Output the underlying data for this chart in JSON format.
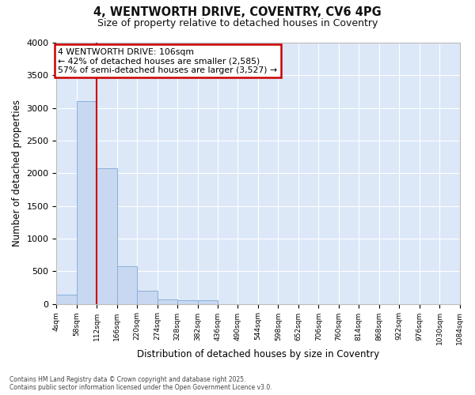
{
  "title_line1": "4, WENTWORTH DRIVE, COVENTRY, CV6 4PG",
  "title_line2": "Size of property relative to detached houses in Coventry",
  "xlabel": "Distribution of detached houses by size in Coventry",
  "ylabel": "Number of detached properties",
  "bar_color": "#c8d8f0",
  "bar_edge_color": "#8ab0d8",
  "plot_bg_color": "#dce8f8",
  "grid_color": "#ffffff",
  "fig_bg_color": "#ffffff",
  "bin_edges": [
    4,
    58,
    112,
    166,
    220,
    274,
    328,
    382,
    436,
    490,
    544,
    598,
    652,
    706,
    760,
    814,
    868,
    922,
    976,
    1030,
    1084
  ],
  "bar_heights": [
    140,
    3100,
    2080,
    575,
    195,
    70,
    55,
    55,
    0,
    0,
    0,
    0,
    0,
    0,
    0,
    0,
    0,
    0,
    0,
    0
  ],
  "red_line_x": 112,
  "red_line_color": "#cc0000",
  "annotation_text_line1": "4 WENTWORTH DRIVE: 106sqm",
  "annotation_text_line2": "← 42% of detached houses are smaller (2,585)",
  "annotation_text_line3": "57% of semi-detached houses are larger (3,527) →",
  "annotation_box_edge_color": "#cc0000",
  "ylim": [
    0,
    4000
  ],
  "yticks": [
    0,
    500,
    1000,
    1500,
    2000,
    2500,
    3000,
    3500,
    4000
  ],
  "tick_labels": [
    "4sqm",
    "58sqm",
    "112sqm",
    "166sqm",
    "220sqm",
    "274sqm",
    "328sqm",
    "382sqm",
    "436sqm",
    "490sqm",
    "544sqm",
    "598sqm",
    "652sqm",
    "706sqm",
    "760sqm",
    "814sqm",
    "868sqm",
    "922sqm",
    "976sqm",
    "1030sqm",
    "1084sqm"
  ],
  "footer_line1": "Contains HM Land Registry data © Crown copyright and database right 2025.",
  "footer_line2": "Contains public sector information licensed under the Open Government Licence v3.0."
}
